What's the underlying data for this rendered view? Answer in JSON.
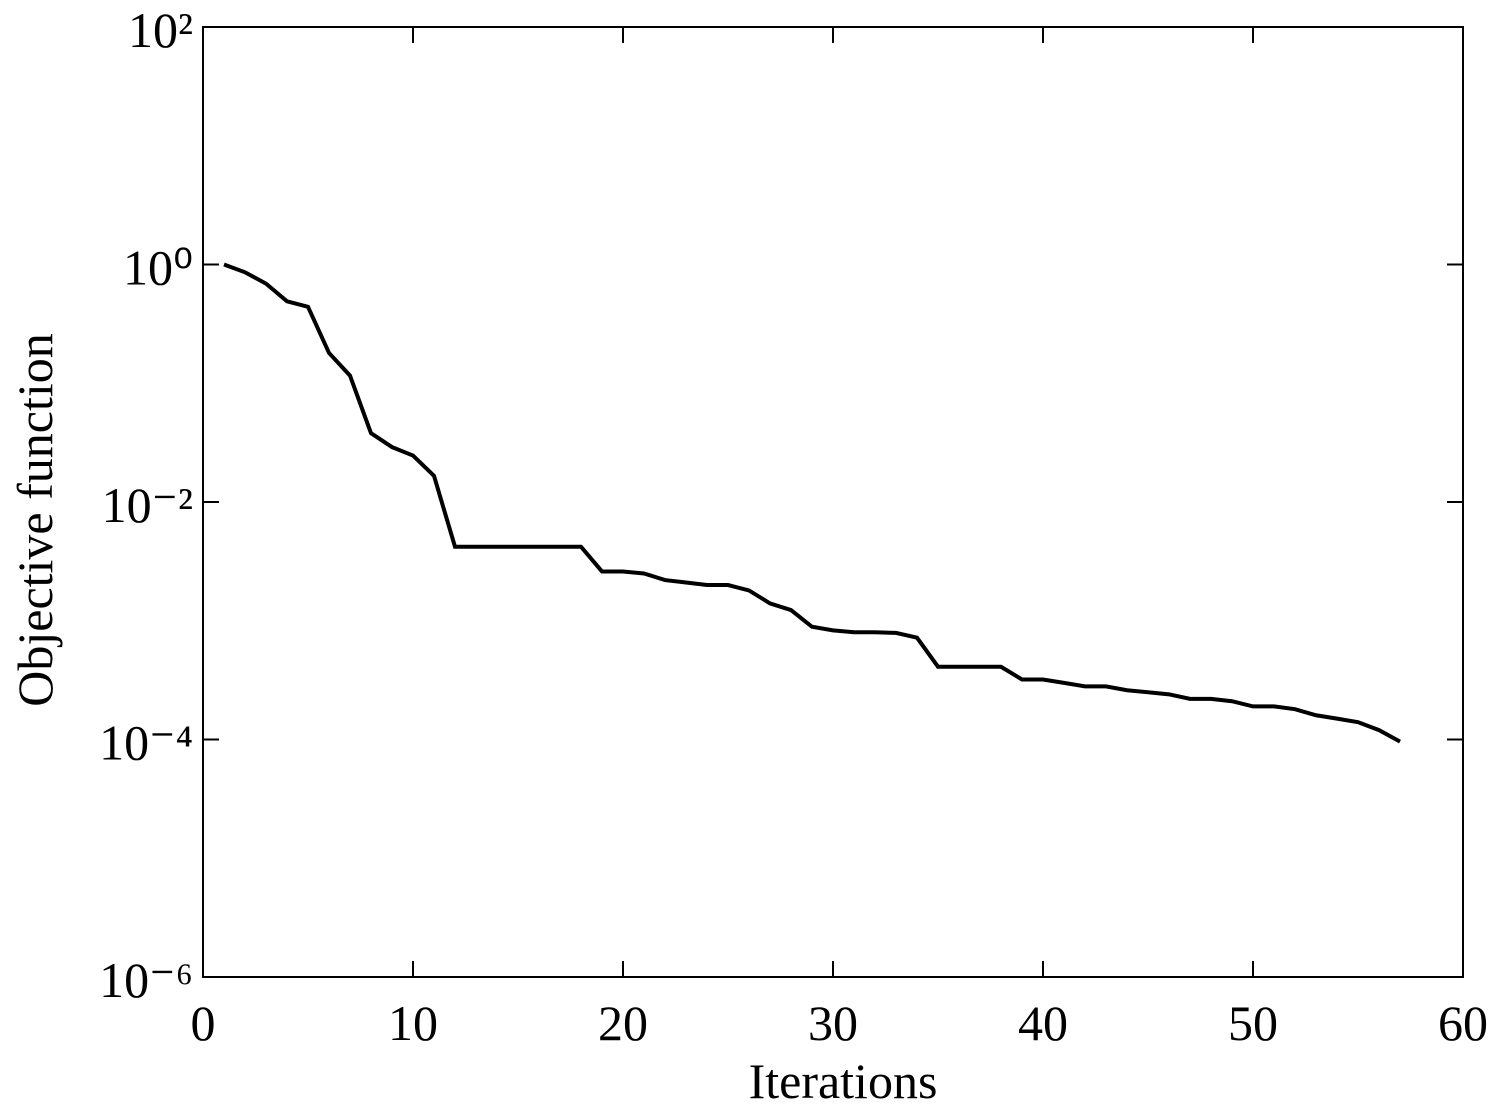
{
  "chart_data": {
    "type": "line",
    "xlabel": "Iterations",
    "ylabel": "Objective function",
    "xlim": [
      0,
      60
    ],
    "xticks": [
      0,
      10,
      20,
      30,
      40,
      50,
      60
    ],
    "ylim": [
      1e-06,
      100
    ],
    "log_y": true,
    "yticks": [
      {
        "value": 1e-06,
        "label": "10⁻⁶"
      },
      {
        "value": 0.0001,
        "label": "10⁻⁴"
      },
      {
        "value": 0.01,
        "label": "10⁻²"
      },
      {
        "value": 1,
        "label": "10⁰"
      },
      {
        "value": 100,
        "label": "10²"
      }
    ],
    "grid": false,
    "series": [
      {
        "color": "#000000",
        "x": [
          1,
          2,
          3,
          4,
          5,
          6,
          7,
          8,
          9,
          10,
          11,
          12,
          13,
          14,
          15,
          16,
          17,
          18,
          19,
          20,
          21,
          22,
          23,
          24,
          25,
          26,
          27,
          28,
          29,
          30,
          31,
          32,
          33,
          34,
          35,
          36,
          37,
          38,
          39,
          40,
          41,
          42,
          43,
          44,
          45,
          46,
          47,
          48,
          49,
          50,
          51,
          52,
          53,
          54,
          55,
          56,
          57
        ],
        "values": [
          1.0,
          0.86,
          0.69,
          0.49,
          0.44,
          0.18,
          0.116,
          0.038,
          0.029,
          0.0246,
          0.0166,
          0.0042,
          0.0042,
          0.0042,
          0.0042,
          0.0042,
          0.0042,
          0.0042,
          0.0026,
          0.0026,
          0.0025,
          0.0022,
          0.0021,
          0.002,
          0.002,
          0.0018,
          0.0014,
          0.00123,
          0.00089,
          0.00083,
          0.0008,
          0.0008,
          0.00079,
          0.00072,
          0.00041,
          0.00041,
          0.00041,
          0.00041,
          0.00032,
          0.00032,
          0.0003,
          0.00028,
          0.00028,
          0.00026,
          0.00025,
          0.00024,
          0.00022,
          0.00022,
          0.00021,
          0.00019,
          0.00019,
          0.00018,
          0.00016,
          0.00015,
          0.00014,
          0.00012,
          9.6e-05
        ]
      }
    ]
  }
}
